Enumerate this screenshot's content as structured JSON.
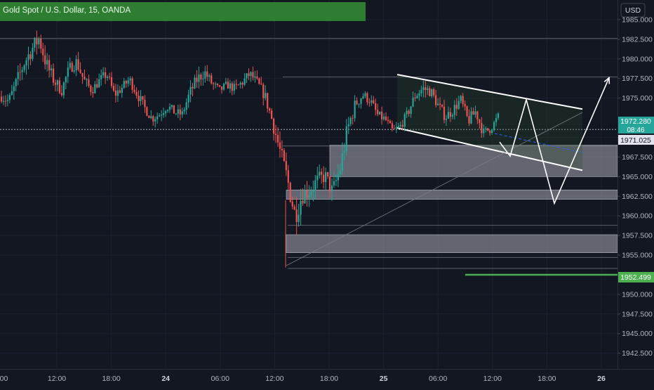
{
  "header": {
    "title": "Gold Spot / U.S. Dollar, 15, OANDA",
    "currency_button": "USD",
    "banner_color": "#2e7d32"
  },
  "price_axis": {
    "ticks": [
      "1985.000",
      "1982.500",
      "1980.000",
      "1977.500",
      "1975.000",
      "1970.000",
      "1967.500",
      "1965.000",
      "1962.500",
      "1960.000",
      "1957.500",
      "1955.000",
      "1950.000",
      "1947.500",
      "1945.000",
      "1942.500"
    ],
    "tick_values": [
      1985.0,
      1982.5,
      1980.0,
      1977.5,
      1975.0,
      1970.0,
      1967.5,
      1965.0,
      1962.5,
      1960.0,
      1957.5,
      1955.0,
      1950.0,
      1947.5,
      1945.0,
      1942.5
    ]
  },
  "time_axis": {
    "ticks": [
      {
        "label": "12:00",
        "bold": false
      },
      {
        "label": "18:00",
        "bold": false
      },
      {
        "label": "24",
        "bold": true
      },
      {
        "label": "06:00",
        "bold": false
      },
      {
        "label": "12:00",
        "bold": false
      },
      {
        "label": "18:00",
        "bold": false
      },
      {
        "label": "25",
        "bold": true
      },
      {
        "label": "06:00",
        "bold": false
      },
      {
        "label": "12:00",
        "bold": false
      },
      {
        "label": "18:00",
        "bold": false
      },
      {
        "label": "26",
        "bold": true
      }
    ],
    "left_cut_label": ":00"
  },
  "price_labels": {
    "current_price": "1972.280",
    "countdown": "08:46",
    "price_line_label": "1971.025",
    "target_label": "1952.499"
  },
  "colors": {
    "background": "#131722",
    "up": "#26a69a",
    "down": "#ef5350",
    "zone": "#9598a1",
    "channel": "#ffffff",
    "target": "#4caf50"
  },
  "chart_data": {
    "type": "candlestick",
    "title": "Gold Spot / U.S. Dollar, 15, OANDA",
    "currency": "USD",
    "ylim": [
      1940.5,
      1987.5
    ],
    "current_price": 1972.28,
    "last_price_line": 1971.025,
    "target_level": 1952.499,
    "horizontal_levels": [
      1982.6,
      1977.7,
      1971.0,
      1968.9,
      1958.8,
      1954.7,
      1953.3
    ],
    "zones": [
      {
        "from": 1965.0,
        "to": 1969.0
      },
      {
        "from": 1962.1,
        "to": 1963.3
      },
      {
        "from": 1955.3,
        "to": 1957.6
      }
    ],
    "channel": {
      "upper": [
        1978.0,
        1973.6
      ],
      "lower": [
        1971.2,
        1965.8
      ]
    },
    "projected_path": [
      1969.4,
      1967.6,
      1974.8,
      1961.6,
      1977.6
    ],
    "price_path": [
      1975.2,
      1974.6,
      1977.0,
      1979.4,
      1981.2,
      1982.6,
      1979.2,
      1977.2,
      1976.0,
      1978.8,
      1979.6,
      1977.2,
      1976.0,
      1977.2,
      1978.1,
      1975.4,
      1976.3,
      1977.4,
      1975.6,
      1973.8,
      1972.4,
      1972.9,
      1974.0,
      1973.2,
      1972.9,
      1975.6,
      1977.4,
      1978.3,
      1976.8,
      1976.0,
      1976.7,
      1976.2,
      1977.0,
      1978.1,
      1976.9,
      1975.3,
      1972.1,
      1968.3,
      1964.6,
      1960.1,
      1962.8,
      1963.3,
      1964.5,
      1965.1,
      1963.0,
      1966.0,
      1971.1,
      1974.2,
      1975.4,
      1974.7,
      1972.8,
      1972.3,
      1970.8,
      1971.4,
      1973.1,
      1975.4,
      1976.2,
      1975.9,
      1974.1,
      1972.6,
      1973.5,
      1974.8,
      1972.1,
      1973.3,
      1970.6,
      1971.1,
      1972.6
    ],
    "volatility": [
      0.9,
      1.2,
      1.4,
      1.3,
      1.6,
      1.5,
      1.6,
      1.2,
      1.1,
      1.0,
      1.2,
      1.1,
      0.9,
      0.9,
      1.0,
      1.0,
      0.9,
      0.9,
      1.0,
      0.9,
      0.9,
      0.8,
      0.9,
      0.9,
      0.8,
      1.1,
      1.2,
      1.1,
      0.9,
      0.8,
      0.8,
      0.9,
      0.9,
      0.9,
      1.0,
      1.1,
      1.5,
      1.6,
      1.9,
      2.2,
      1.8,
      1.6,
      1.5,
      1.4,
      1.6,
      2.0,
      1.8,
      1.2,
      1.0,
      0.9,
      0.9,
      0.8,
      0.7,
      0.8,
      0.9,
      1.1,
      1.1,
      1.1,
      1.0,
      1.0,
      1.0,
      1.0,
      1.1,
      1.0,
      0.9,
      0.8,
      0.9
    ]
  }
}
